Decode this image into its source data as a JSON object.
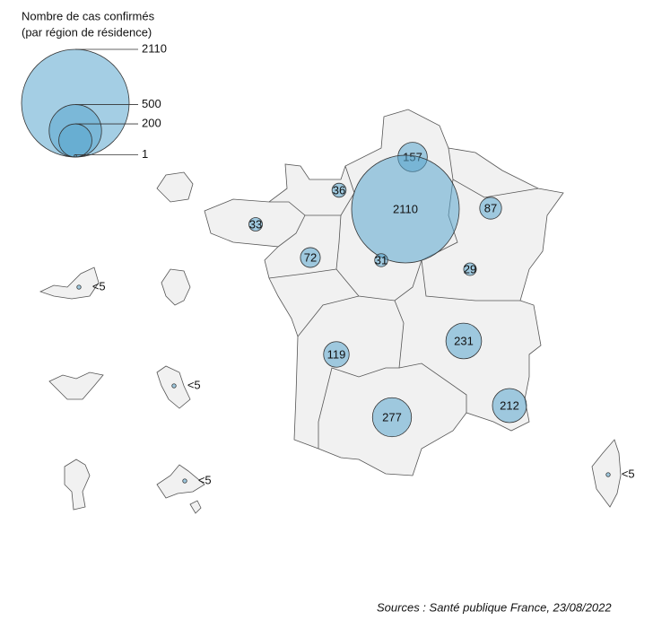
{
  "legend": {
    "title": "Nombre de cas confirmés",
    "subtitle": "(par région de résidence)",
    "sizes": [
      2110,
      500,
      200,
      1
    ]
  },
  "regions": [
    {
      "value": 157
    },
    {
      "value": 36
    },
    {
      "value": 2110
    },
    {
      "value": 87
    },
    {
      "value": 33
    },
    {
      "value": 72
    },
    {
      "value": 31
    },
    {
      "value": 29
    },
    {
      "value": 119
    },
    {
      "value": 231
    },
    {
      "value": 277
    },
    {
      "value": 212
    },
    {
      "value": 3,
      "label": "<5"
    },
    {
      "value": 3,
      "label": "<5"
    },
    {
      "value": 3,
      "label": "<5"
    },
    {
      "value": 3,
      "label": "<5"
    }
  ],
  "source": "Sources : Santé publique France, 23/08/2022"
}
